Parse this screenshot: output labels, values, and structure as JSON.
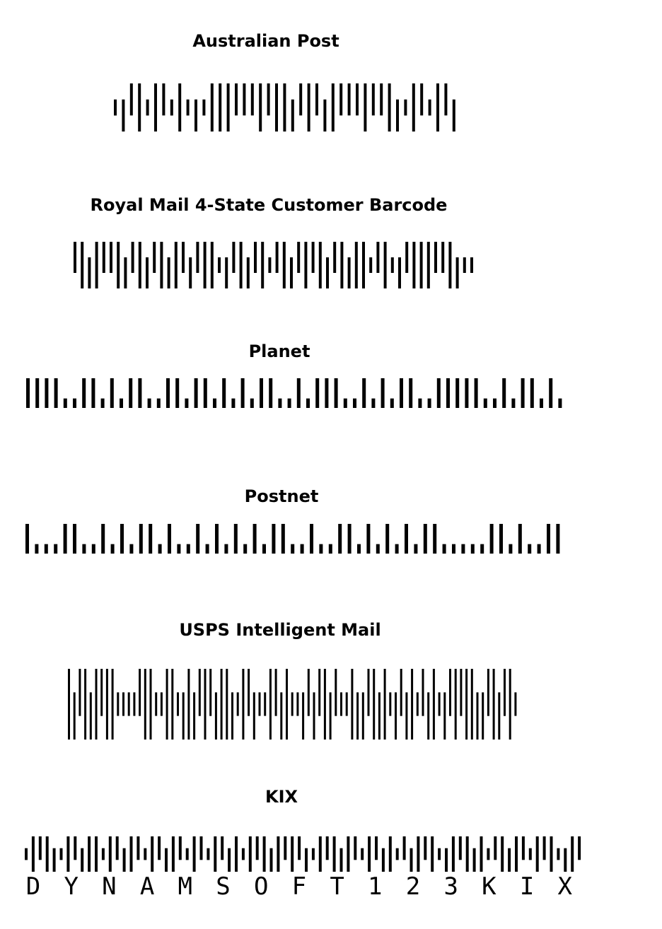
{
  "colors": {
    "bar": "#000000",
    "background": "#ffffff"
  },
  "barcodes": [
    {
      "id": "australian-post",
      "title": "Australian Post",
      "type": "4-state",
      "bars": "TDAFTFATFTDTFFFAAAFAFFDAFADFAAAFAAFDTFATFAD"
    },
    {
      "id": "royal-mail",
      "title": "Royal Mail 4-State Customer Barcode",
      "type": "4-state",
      "bars": "AFDFAAFDAFDAFDFADAFFTDAFDAFTAFDAFAFDAFDFFTAFTDAFFFAAFDTT"
    },
    {
      "id": "planet",
      "title": "Planet",
      "type": "2-state",
      "bars": "TTTTSSTTSTSTTSSTTSTTSTSTSTTSSTSTTTSSTSTSTTSSTTTTTSSTSTTSTS"
    },
    {
      "id": "postnet",
      "title": "Postnet",
      "type": "2-state",
      "bars": "TSSSTTSSTSTSTTSTSSTSTSTSTSTTSSTSSTTSTSTSTSTTSSSSSTTSTSSTT"
    },
    {
      "id": "usps-intelligent-mail",
      "title": "USPS Intelligent Mail",
      "type": "4-state",
      "bars": "FDAFDFAFFTTTTAFFTTFFTDFDAFADFFDTFADTTFADFTTDADAFDATTFDDAFDFTDADFTADFTDAFAFFDDAFDAFT"
    },
    {
      "id": "kix",
      "title": "KIX",
      "type": "4-state",
      "bars": "TFAFDTFADFFTFADFATFADFATFATFADFTFAFDFAFADTFAFDFATFADFTADFAFTDFAFDFTAFDFATFAFTDFA",
      "text": [
        "D",
        "Y",
        "N",
        "A",
        "M",
        "S",
        "O",
        "F",
        "T",
        "1",
        "2",
        "3",
        "K",
        "I",
        "X"
      ]
    }
  ]
}
